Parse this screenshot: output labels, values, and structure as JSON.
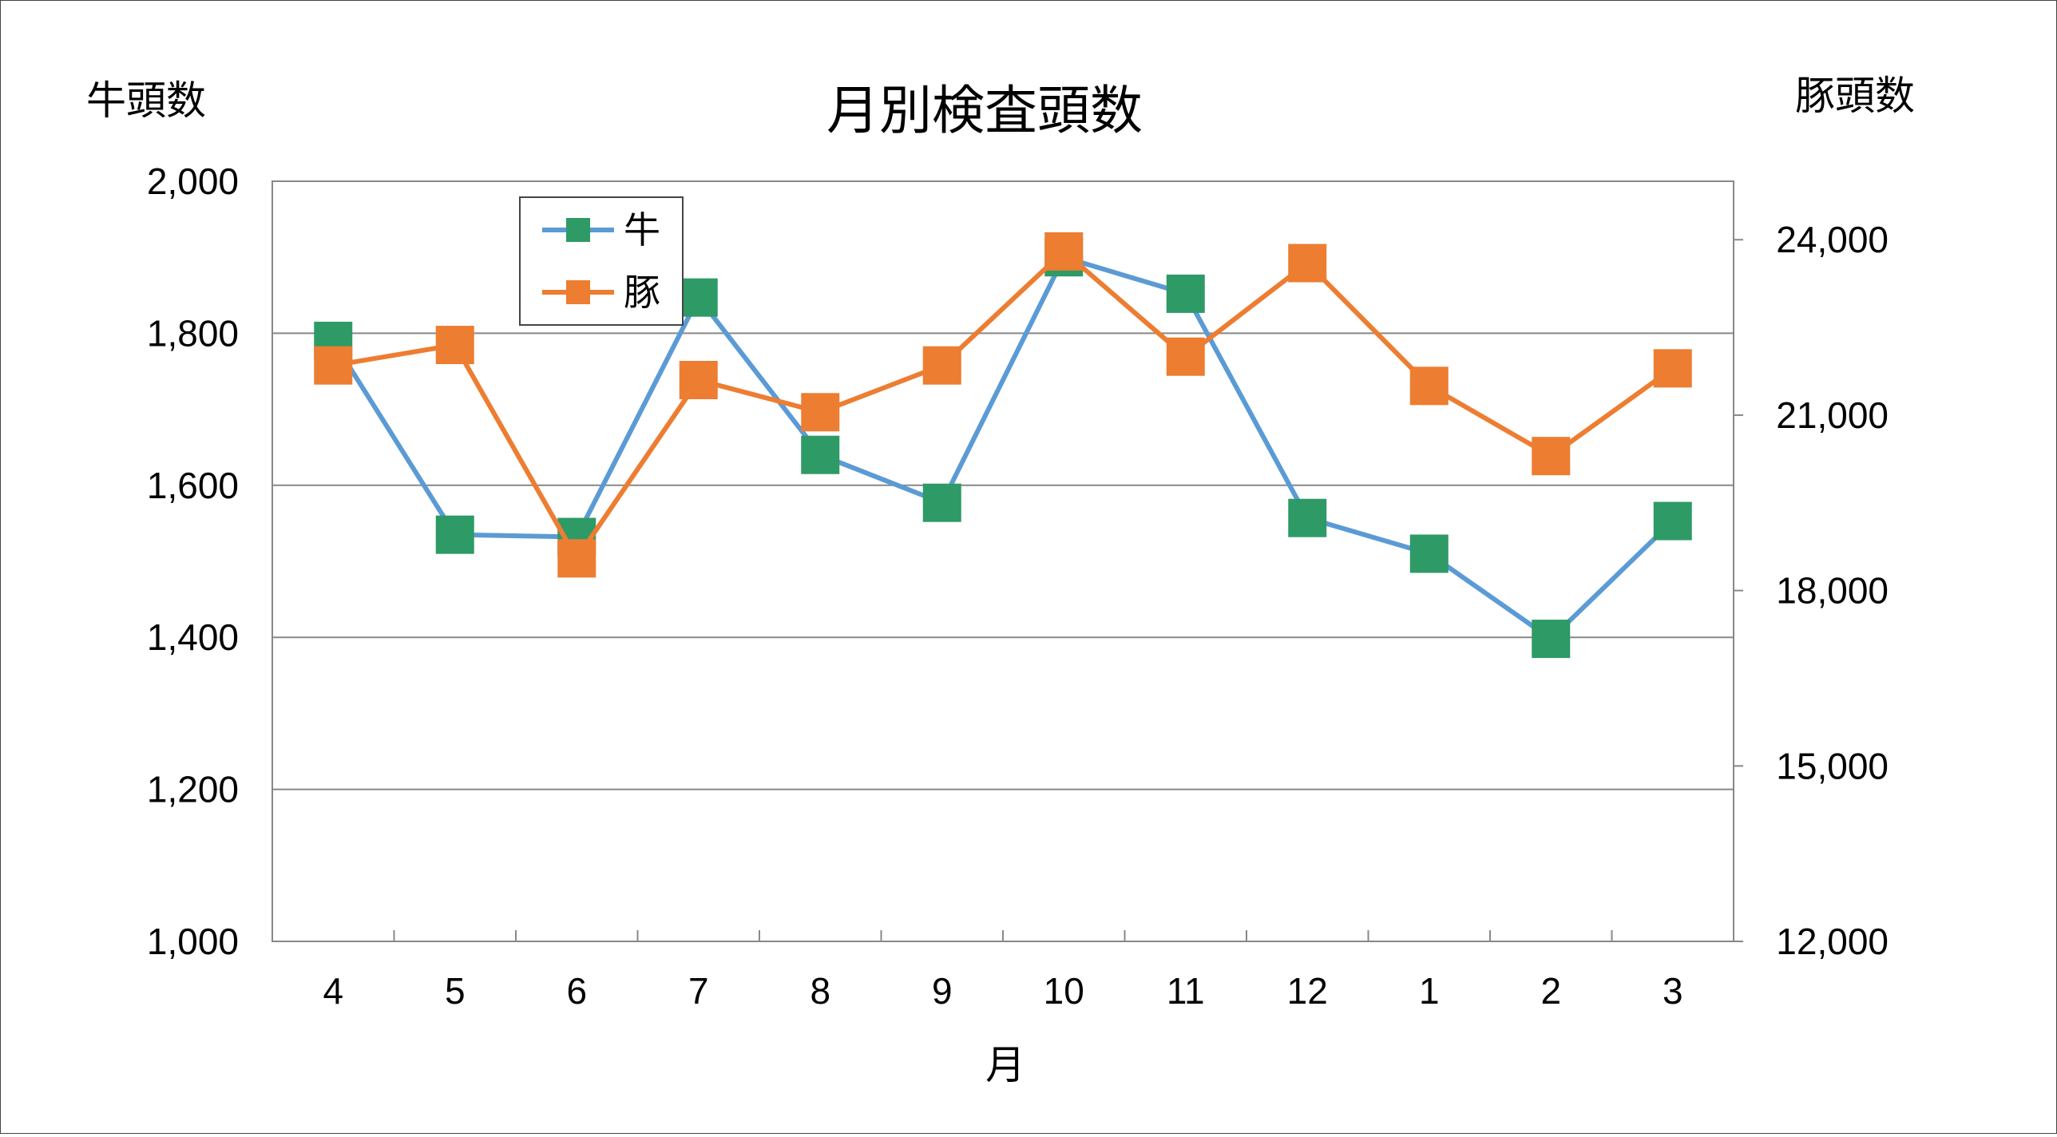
{
  "chart_data": {
    "type": "line",
    "title": "月別検査頭数",
    "xlabel": "月",
    "ylabel_left": "牛頭数",
    "ylabel_right": "豚頭数",
    "categories": [
      "4",
      "5",
      "6",
      "7",
      "8",
      "9",
      "10",
      "11",
      "12",
      "1",
      "2",
      "3"
    ],
    "y_left": {
      "min": 1000,
      "max": 2000,
      "ticks": [
        "1,000",
        "1,200",
        "1,400",
        "1,600",
        "1,800",
        "2,000"
      ]
    },
    "y_right": {
      "min": 12000,
      "max": 25000,
      "ticks": [
        "12,000",
        "15,000",
        "18,000",
        "21,000",
        "24,000"
      ]
    },
    "grid": true,
    "legend_position": "top-left",
    "series": [
      {
        "name": "牛",
        "axis": "left",
        "line_color": "#5B9BD5",
        "marker_color": "#2E9A66",
        "values": [
          1790,
          1535,
          1532,
          1847,
          1640,
          1577,
          1900,
          1852,
          1557,
          1510,
          1398,
          1553
        ]
      },
      {
        "name": "豚",
        "axis": "right",
        "line_color": "#ED7D31",
        "marker_color": "#ED7D31",
        "values": [
          21850,
          22200,
          18550,
          21600,
          21050,
          21850,
          23800,
          22000,
          23600,
          21500,
          20300,
          21800
        ]
      }
    ]
  }
}
